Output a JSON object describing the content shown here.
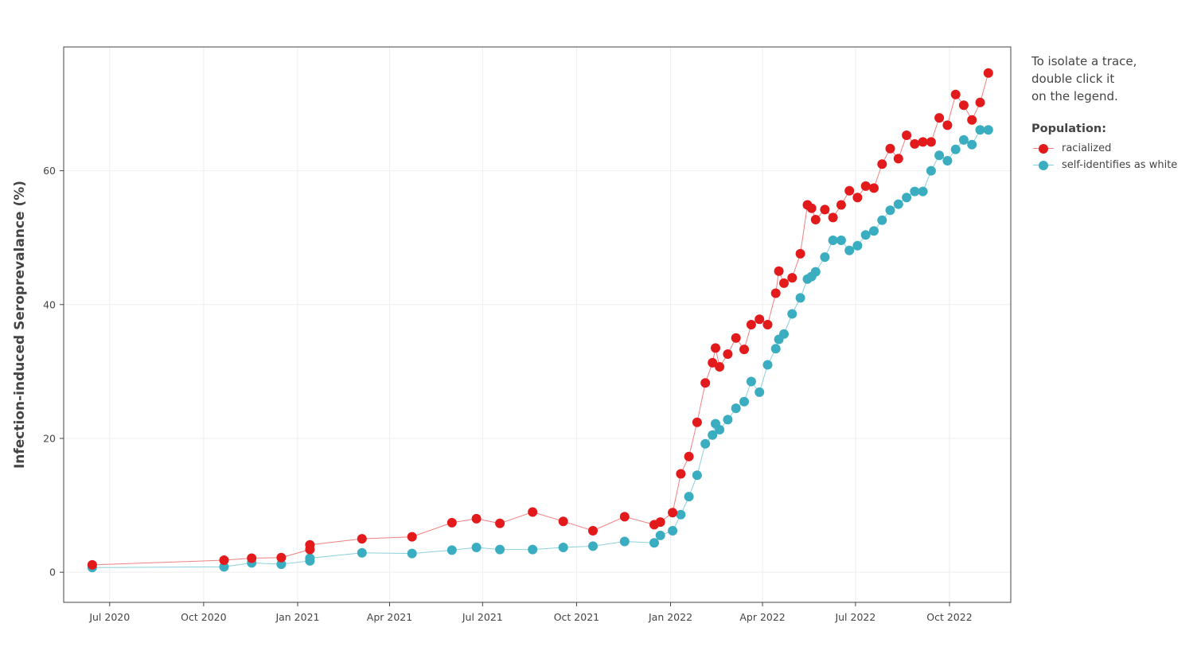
{
  "note": "To isolate a trace,\ndouble click it\non the legend.",
  "chart_data": {
    "type": "scatter",
    "ylabel": "Infection-induced Seroprevalance  (%)",
    "xlabel": "",
    "title": "",
    "legend_title": "Population:",
    "legend_position": "right",
    "grid": true,
    "ylim": [
      -4.5,
      78.5
    ],
    "y_ticks": [
      0,
      20,
      40,
      60
    ],
    "xlim": [
      "2020-05-17",
      "2022-11-30"
    ],
    "x_ticks": [
      {
        "date": "2020-07-01",
        "label": "Jul 2020"
      },
      {
        "date": "2020-10-01",
        "label": "Oct 2020"
      },
      {
        "date": "2021-01-01",
        "label": "Jan 2021"
      },
      {
        "date": "2021-04-01",
        "label": "Apr 2021"
      },
      {
        "date": "2021-07-01",
        "label": "Jul 2021"
      },
      {
        "date": "2021-10-01",
        "label": "Oct 2021"
      },
      {
        "date": "2022-01-01",
        "label": "Jan 2022"
      },
      {
        "date": "2022-04-01",
        "label": "Apr 2022"
      },
      {
        "date": "2022-07-01",
        "label": "Jul 2022"
      },
      {
        "date": "2022-10-01",
        "label": "Oct 2022"
      }
    ],
    "series": [
      {
        "name": "racialized",
        "color": "#e31a1c",
        "line_color": "#f08080",
        "points": [
          [
            "2020-06-14",
            1.1
          ],
          [
            "2020-10-21",
            1.8
          ],
          [
            "2020-11-17",
            2.1
          ],
          [
            "2020-12-16",
            2.2
          ],
          [
            "2021-01-13",
            3.4
          ],
          [
            "2021-01-13",
            4.1
          ],
          [
            "2021-03-05",
            5.0
          ],
          [
            "2021-04-23",
            5.3
          ],
          [
            "2021-06-01",
            7.4
          ],
          [
            "2021-06-25",
            8.0
          ],
          [
            "2021-07-18",
            7.3
          ],
          [
            "2021-08-19",
            9.0
          ],
          [
            "2021-09-18",
            7.6
          ],
          [
            "2021-10-17",
            6.2
          ],
          [
            "2021-11-17",
            8.3
          ],
          [
            "2021-12-16",
            7.1
          ],
          [
            "2021-12-22",
            7.5
          ],
          [
            "2022-01-03",
            8.9
          ],
          [
            "2022-01-11",
            14.7
          ],
          [
            "2022-01-19",
            17.3
          ],
          [
            "2022-01-27",
            22.4
          ],
          [
            "2022-02-04",
            28.3
          ],
          [
            "2022-02-11",
            31.3
          ],
          [
            "2022-02-14",
            33.5
          ],
          [
            "2022-02-18",
            30.7
          ],
          [
            "2022-02-26",
            32.6
          ],
          [
            "2022-03-06",
            35.0
          ],
          [
            "2022-03-14",
            33.3
          ],
          [
            "2022-03-21",
            37.0
          ],
          [
            "2022-03-29",
            37.8
          ],
          [
            "2022-04-06",
            37.0
          ],
          [
            "2022-04-14",
            41.7
          ],
          [
            "2022-04-17",
            45.0
          ],
          [
            "2022-04-22",
            43.2
          ],
          [
            "2022-04-30",
            44.0
          ],
          [
            "2022-05-08",
            47.6
          ],
          [
            "2022-05-15",
            54.9
          ],
          [
            "2022-05-19",
            54.4
          ],
          [
            "2022-05-23",
            52.7
          ],
          [
            "2022-06-01",
            54.2
          ],
          [
            "2022-06-09",
            53.0
          ],
          [
            "2022-06-17",
            54.9
          ],
          [
            "2022-06-25",
            57.0
          ],
          [
            "2022-07-03",
            56.0
          ],
          [
            "2022-07-11",
            57.7
          ],
          [
            "2022-07-19",
            57.4
          ],
          [
            "2022-07-27",
            61.0
          ],
          [
            "2022-08-04",
            63.3
          ],
          [
            "2022-08-12",
            61.8
          ],
          [
            "2022-08-20",
            65.3
          ],
          [
            "2022-08-28",
            64.0
          ],
          [
            "2022-09-05",
            64.3
          ],
          [
            "2022-09-13",
            64.3
          ],
          [
            "2022-09-21",
            67.9
          ],
          [
            "2022-09-29",
            66.8
          ],
          [
            "2022-10-07",
            71.4
          ],
          [
            "2022-10-15",
            69.8
          ],
          [
            "2022-10-23",
            67.6
          ],
          [
            "2022-10-31",
            70.2
          ],
          [
            "2022-11-08",
            74.6
          ]
        ]
      },
      {
        "name": "self-identifies as white",
        "color": "#3aaec0",
        "line_color": "#8cd0db",
        "points": [
          [
            "2020-06-14",
            0.7
          ],
          [
            "2020-10-21",
            0.8
          ],
          [
            "2020-11-17",
            1.4
          ],
          [
            "2020-12-16",
            1.2
          ],
          [
            "2021-01-13",
            1.7
          ],
          [
            "2021-01-13",
            2.1
          ],
          [
            "2021-03-05",
            2.9
          ],
          [
            "2021-04-23",
            2.8
          ],
          [
            "2021-06-01",
            3.3
          ],
          [
            "2021-06-25",
            3.7
          ],
          [
            "2021-07-18",
            3.4
          ],
          [
            "2021-08-19",
            3.4
          ],
          [
            "2021-09-18",
            3.7
          ],
          [
            "2021-10-17",
            3.9
          ],
          [
            "2021-11-17",
            4.6
          ],
          [
            "2021-12-16",
            4.4
          ],
          [
            "2021-12-22",
            5.5
          ],
          [
            "2022-01-03",
            6.2
          ],
          [
            "2022-01-11",
            8.6
          ],
          [
            "2022-01-19",
            11.3
          ],
          [
            "2022-01-27",
            14.5
          ],
          [
            "2022-02-04",
            19.2
          ],
          [
            "2022-02-11",
            20.5
          ],
          [
            "2022-02-14",
            22.2
          ],
          [
            "2022-02-18",
            21.3
          ],
          [
            "2022-02-26",
            22.8
          ],
          [
            "2022-03-06",
            24.5
          ],
          [
            "2022-03-14",
            25.5
          ],
          [
            "2022-03-21",
            28.5
          ],
          [
            "2022-03-29",
            26.9
          ],
          [
            "2022-04-06",
            31.0
          ],
          [
            "2022-04-14",
            33.4
          ],
          [
            "2022-04-17",
            34.8
          ],
          [
            "2022-04-22",
            35.6
          ],
          [
            "2022-04-30",
            38.6
          ],
          [
            "2022-05-08",
            41.0
          ],
          [
            "2022-05-15",
            43.8
          ],
          [
            "2022-05-19",
            44.2
          ],
          [
            "2022-05-23",
            44.9
          ],
          [
            "2022-06-01",
            47.1
          ],
          [
            "2022-06-09",
            49.6
          ],
          [
            "2022-06-17",
            49.6
          ],
          [
            "2022-06-25",
            48.1
          ],
          [
            "2022-07-03",
            48.8
          ],
          [
            "2022-07-11",
            50.4
          ],
          [
            "2022-07-19",
            51.0
          ],
          [
            "2022-07-27",
            52.6
          ],
          [
            "2022-08-04",
            54.1
          ],
          [
            "2022-08-12",
            55.0
          ],
          [
            "2022-08-20",
            56.0
          ],
          [
            "2022-08-28",
            56.9
          ],
          [
            "2022-09-05",
            56.9
          ],
          [
            "2022-09-13",
            60.0
          ],
          [
            "2022-09-21",
            62.3
          ],
          [
            "2022-09-29",
            61.5
          ],
          [
            "2022-10-07",
            63.2
          ],
          [
            "2022-10-15",
            64.6
          ],
          [
            "2022-10-23",
            63.9
          ],
          [
            "2022-10-31",
            66.1
          ],
          [
            "2022-11-08",
            66.1
          ]
        ]
      }
    ]
  }
}
